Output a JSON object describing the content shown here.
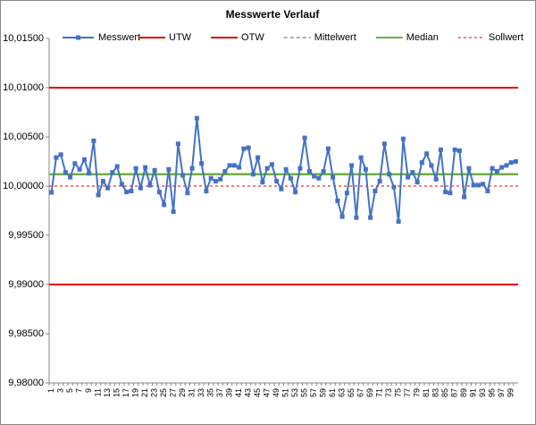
{
  "chart_data": {
    "type": "line",
    "title": "Messwerte Verlauf",
    "categories": [
      1,
      null,
      3,
      null,
      5,
      null,
      7,
      null,
      9,
      null,
      11,
      null,
      13,
      null,
      15,
      null,
      17,
      null,
      19,
      null,
      21,
      null,
      23,
      null,
      25,
      null,
      27,
      null,
      29,
      null,
      31,
      null,
      33,
      null,
      35,
      null,
      37,
      null,
      39,
      null,
      41,
      null,
      43,
      null,
      45,
      null,
      47,
      null,
      49,
      null,
      51,
      null,
      53,
      null,
      55,
      null,
      57,
      null,
      59,
      null,
      61,
      null,
      63,
      null,
      65,
      null,
      67,
      null,
      69,
      null,
      71,
      null,
      73,
      null,
      75,
      null,
      77,
      null,
      79,
      null,
      81,
      null,
      83,
      null,
      85,
      null,
      87,
      null,
      89,
      null,
      91,
      null,
      93,
      null,
      95,
      null,
      97,
      null,
      99,
      null
    ],
    "series": [
      {
        "name": "Messwert",
        "color": "#4472c4",
        "values": [
          9.99936,
          10.0029,
          10.0032,
          10.0014,
          10.0009,
          10.0023,
          10.0017,
          10.0027,
          10.0013,
          10.0046,
          9.9991,
          10.0005,
          9.9998,
          10.0014,
          10.002,
          10.0002,
          9.9994,
          9.9995,
          10.0018,
          9.9998,
          10.0019,
          10.0001,
          10.0016,
          9.9994,
          9.9981,
          10.0017,
          9.9974,
          10.0043,
          10.0011,
          9.9993,
          10.0018,
          10.0069,
          10.0023,
          9.9995,
          10.0008,
          10.0005,
          10.0007,
          10.0015,
          10.0021,
          10.0021,
          10.0019,
          10.0038,
          10.0039,
          10.0012,
          10.0029,
          10.0004,
          10.0018,
          10.0022,
          10.0005,
          9.9997,
          10.0017,
          10.0008,
          9.9994,
          10.0018,
          10.0049,
          10.0015,
          10.001,
          10.0008,
          10.0015,
          10.0038,
          10.0009,
          9.9985,
          9.9969,
          9.9993,
          10.0021,
          9.9968,
          10.0029,
          10.0017,
          9.9968,
          9.9995,
          10.0005,
          10.0043,
          10.0012,
          9.9999,
          9.9964,
          10.0048,
          10.0009,
          10.0014,
          10.0004,
          10.0024,
          10.0033,
          10.0021,
          10.0007,
          10.0037,
          9.9994,
          9.9993,
          10.0037,
          10.0036,
          9.9989,
          10.0018,
          10.0001,
          10.0001,
          10.0002,
          9.9995,
          10.0018,
          10.0015,
          10.0019,
          10.0021,
          10.0024,
          10.0025
        ]
      }
    ],
    "lines": [
      {
        "name": "UTW",
        "value": 9.99,
        "color": "#e00000",
        "style": "solid"
      },
      {
        "name": "OTW",
        "value": 10.01,
        "color": "#e00000",
        "style": "solid"
      },
      {
        "name": "Mittelwert",
        "value": 10.0012,
        "color": "#606060",
        "style": "dashed"
      },
      {
        "name": "Median",
        "value": 10.0012,
        "color": "#70ad47",
        "style": "solid"
      },
      {
        "name": "Sollwert",
        "value": 10.0,
        "color": "#e00000",
        "style": "dotted"
      }
    ],
    "ylim": [
      9.98,
      10.015
    ],
    "yticks": [
      {
        "value": 9.98,
        "label": "9,98000"
      },
      {
        "value": 9.985,
        "label": "9,98500"
      },
      {
        "value": 9.99,
        "label": "9,99000"
      },
      {
        "value": 9.995,
        "label": "9,99500"
      },
      {
        "value": 10.0,
        "label": "10,00000"
      },
      {
        "value": 10.005,
        "label": "10,00500"
      },
      {
        "value": 10.01,
        "label": "10,01000"
      },
      {
        "value": 10.015,
        "label": "10,01500"
      }
    ]
  }
}
